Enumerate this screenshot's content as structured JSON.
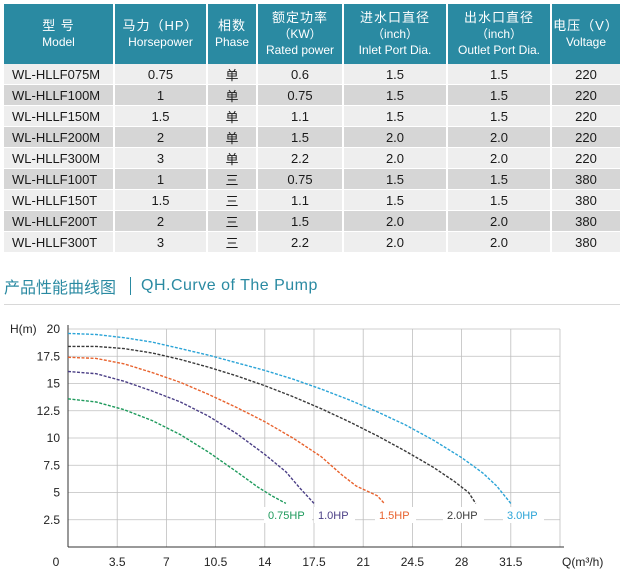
{
  "spec_table": {
    "headers": [
      {
        "cn": "型 号",
        "en": "Model"
      },
      {
        "cn": "马力（HP）",
        "en": "Horsepower"
      },
      {
        "cn": "相数",
        "en": "Phase"
      },
      {
        "cn": "额定功率",
        "unit": "（KW）",
        "en": "Rated power"
      },
      {
        "cn": "进水口直径",
        "unit": "（inch）",
        "en": "Inlet Port Dia."
      },
      {
        "cn": "出水口直径",
        "unit": "（inch）",
        "en": "Outlet Port Dia."
      },
      {
        "cn": "电压（V）",
        "en": "Voltage"
      }
    ],
    "rows": [
      [
        "WL-HLLF075M",
        "0.75",
        "单",
        "0.6",
        "1.5",
        "1.5",
        "220"
      ],
      [
        "WL-HLLF100M",
        "1",
        "单",
        "0.75",
        "1.5",
        "1.5",
        "220"
      ],
      [
        "WL-HLLF150M",
        "1.5",
        "单",
        "1.1",
        "1.5",
        "1.5",
        "220"
      ],
      [
        "WL-HLLF200M",
        "2",
        "单",
        "1.5",
        "2.0",
        "2.0",
        "220"
      ],
      [
        "WL-HLLF300M",
        "3",
        "单",
        "2.2",
        "2.0",
        "2.0",
        "220"
      ],
      [
        "WL-HLLF100T",
        "1",
        "三",
        "0.75",
        "1.5",
        "1.5",
        "380"
      ],
      [
        "WL-HLLF150T",
        "1.5",
        "三",
        "1.1",
        "1.5",
        "1.5",
        "380"
      ],
      [
        "WL-HLLF200T",
        "2",
        "三",
        "1.5",
        "2.0",
        "2.0",
        "380"
      ],
      [
        "WL-HLLF300T",
        "3",
        "三",
        "2.2",
        "2.0",
        "2.0",
        "380"
      ]
    ]
  },
  "section": {
    "title_cn": "产品性能曲线图",
    "title_en": "QH.Curve of The Pump"
  },
  "colors": {
    "header_bg": "#2a8aa2",
    "accent": "#2a8aa2",
    "row_light": "#eeeeee",
    "row_dark": "#d6d6d6"
  },
  "chart_data": {
    "type": "line",
    "ylabel": "H(m)",
    "xlabel": "Q(m³/h)",
    "xlim": [
      0,
      35
    ],
    "ylim": [
      0,
      20
    ],
    "x_ticks": [
      "0",
      "3.5",
      "7",
      "10.5",
      "14",
      "17.5",
      "21",
      "24.5",
      "28",
      "31.5"
    ],
    "y_ticks": [
      "2.5",
      "5",
      "7.5",
      "10",
      "12.5",
      "15",
      "17.5",
      "20"
    ],
    "grid": true,
    "series": [
      {
        "name": "0.75HP",
        "color": "#1e9a5c",
        "points": [
          [
            0,
            13.6
          ],
          [
            2,
            13.3
          ],
          [
            4,
            12.6
          ],
          [
            6,
            11.6
          ],
          [
            8,
            10.3
          ],
          [
            10,
            8.7
          ],
          [
            12,
            6.9
          ],
          [
            13.5,
            5.5
          ],
          [
            14.5,
            4.7
          ],
          [
            15.5,
            4.0
          ]
        ]
      },
      {
        "name": "1.0HP",
        "color": "#4b3f86",
        "points": [
          [
            0,
            16.1
          ],
          [
            2,
            15.9
          ],
          [
            4,
            15.2
          ],
          [
            6,
            14.3
          ],
          [
            8,
            13.3
          ],
          [
            10,
            12.0
          ],
          [
            12,
            10.4
          ],
          [
            14,
            8.5
          ],
          [
            15.5,
            6.9
          ],
          [
            16.5,
            5.4
          ],
          [
            17.5,
            4.0
          ]
        ]
      },
      {
        "name": "1.5HP",
        "color": "#e8622d",
        "points": [
          [
            0,
            17.4
          ],
          [
            2,
            17.3
          ],
          [
            4,
            16.8
          ],
          [
            6,
            16.0
          ],
          [
            8,
            15.1
          ],
          [
            10,
            14.0
          ],
          [
            12,
            12.8
          ],
          [
            14,
            11.5
          ],
          [
            16,
            10.0
          ],
          [
            18,
            8.3
          ],
          [
            19.5,
            6.6
          ],
          [
            20.5,
            5.6
          ],
          [
            22,
            4.7
          ],
          [
            22.5,
            4.0
          ]
        ]
      },
      {
        "name": "2.0HP",
        "color": "#3a3a3a",
        "points": [
          [
            0,
            18.4
          ],
          [
            2,
            18.4
          ],
          [
            4,
            18.2
          ],
          [
            6,
            17.8
          ],
          [
            8,
            17.2
          ],
          [
            10,
            16.5
          ],
          [
            12,
            15.7
          ],
          [
            14,
            14.8
          ],
          [
            16,
            13.8
          ],
          [
            18,
            12.7
          ],
          [
            20,
            11.5
          ],
          [
            22,
            10.2
          ],
          [
            24,
            8.8
          ],
          [
            26,
            7.3
          ],
          [
            27.5,
            6.0
          ],
          [
            28.5,
            5.0
          ],
          [
            29,
            4.0
          ]
        ]
      },
      {
        "name": "3.0HP",
        "color": "#2ba4d7",
        "points": [
          [
            0,
            19.6
          ],
          [
            2,
            19.5
          ],
          [
            4,
            19.2
          ],
          [
            6,
            18.8
          ],
          [
            8,
            18.2
          ],
          [
            10,
            17.6
          ],
          [
            12,
            16.9
          ],
          [
            14,
            16.2
          ],
          [
            16,
            15.4
          ],
          [
            18,
            14.5
          ],
          [
            20,
            13.5
          ],
          [
            22,
            12.4
          ],
          [
            24,
            11.2
          ],
          [
            26,
            9.8
          ],
          [
            28,
            8.2
          ],
          [
            29.5,
            6.8
          ],
          [
            30.5,
            5.6
          ],
          [
            31.5,
            4.0
          ]
        ]
      }
    ]
  }
}
